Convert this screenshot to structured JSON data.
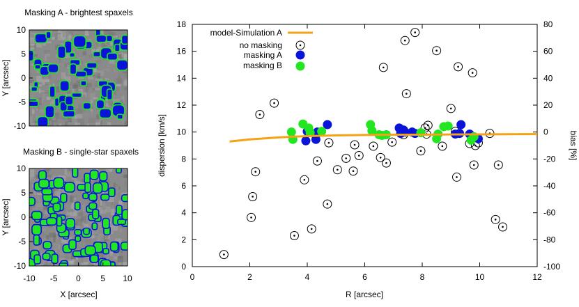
{
  "chart_data": [
    {
      "type": "image",
      "title": "Masking A - brightest spaxels",
      "xlabel": "",
      "ylabel": "Y [arcsec]",
      "xlim": [
        -10,
        10
      ],
      "ylim": [
        -10,
        10
      ],
      "yticks": [
        "10",
        "5",
        "0",
        "-5",
        "-10"
      ],
      "xticks": [],
      "colors": {
        "background": "#8c8c8c",
        "mask": "#0a14d8",
        "edge": "#22e622"
      }
    },
    {
      "type": "image",
      "title": "Masking B - single-star spaxels",
      "xlabel": "X [arcsec]",
      "ylabel": "Y [arcsec]",
      "xlim": [
        -10,
        10
      ],
      "ylim": [
        -10,
        10
      ],
      "yticks": [
        "10",
        "5",
        "0",
        "-5",
        "-10"
      ],
      "xticks": [
        "-10",
        "-5",
        "0",
        "5",
        "10"
      ],
      "colors": {
        "background": "#8c8c8c",
        "mask": "#22e622",
        "edge": "#0a14d8"
      }
    },
    {
      "type": "scatter",
      "xlabel": "R [arcsec]",
      "ylabel": "dispersion [km/s]",
      "y2label": "bias [%]",
      "xlim": [
        0,
        12
      ],
      "ylim": [
        0,
        18
      ],
      "y2lim": [
        -100,
        80
      ],
      "xticks": [
        "0",
        "2",
        "4",
        "6",
        "8",
        "10",
        "12"
      ],
      "yticks": [
        "0",
        "2",
        "4",
        "6",
        "8",
        "10",
        "12",
        "14",
        "16",
        "18"
      ],
      "y2ticks": [
        "-100",
        "-80",
        "-60",
        "-40",
        "-20",
        "0",
        "20",
        "40",
        "60",
        "80"
      ],
      "legend_position": "top-left",
      "series": [
        {
          "name": "model-Simulation A",
          "kind": "line",
          "color": "#f5a214",
          "x": [
            1.3,
            2.0,
            3.0,
            4.0,
            5.0,
            6.0,
            7.0,
            8.0,
            9.0,
            10.0,
            11.0,
            12.0
          ],
          "y": [
            9.3,
            9.45,
            9.6,
            9.7,
            9.75,
            9.78,
            9.8,
            9.8,
            9.82,
            9.83,
            9.84,
            9.85
          ]
        },
        {
          "name": "no masking",
          "kind": "circle-dot",
          "color": "#000000",
          "x": [
            1.1,
            2.05,
            2.1,
            2.2,
            2.35,
            2.85,
            3.55,
            3.9,
            4.15,
            4.35,
            4.7,
            4.75,
            5.05,
            5.35,
            5.6,
            5.65,
            5.8,
            6.3,
            6.55,
            6.65,
            6.75,
            6.95,
            7.35,
            7.4,
            7.45,
            7.75,
            7.95,
            8.1,
            8.15,
            8.2,
            8.5,
            8.7,
            9.0,
            9.15,
            9.2,
            9.25,
            9.65,
            9.75,
            9.8,
            9.85,
            9.95,
            10.35,
            10.55,
            10.65,
            10.8
          ],
          "y": [
            0.9,
            3.65,
            5.2,
            7.05,
            11.3,
            12.15,
            2.3,
            6.45,
            2.8,
            7.85,
            4.65,
            9.2,
            7.2,
            8.05,
            7.1,
            9.05,
            8.25,
            8.95,
            8.1,
            14.8,
            7.7,
            9.25,
            9.8,
            16.8,
            12.85,
            17.4,
            8.6,
            10.3,
            9.85,
            10.5,
            16.05,
            8.95,
            11.75,
            10.05,
            6.65,
            14.85,
            9.15,
            14.4,
            7.55,
            9.0,
            9.2,
            9.9,
            3.5,
            7.55,
            2.95
          ]
        },
        {
          "name": "masking A",
          "kind": "filled-circle",
          "color": "#0a14d8",
          "x": [
            3.95,
            4.0,
            4.3,
            4.35,
            4.7,
            7.2,
            7.25,
            7.35,
            7.4,
            7.65,
            7.75,
            9.15,
            9.3,
            9.35,
            9.65,
            9.95
          ],
          "y": [
            9.35,
            10.05,
            9.45,
            10.0,
            10.55,
            10.3,
            9.9,
            10.15,
            10.0,
            10.0,
            9.9,
            9.85,
            9.9,
            10.55,
            9.85,
            9.5
          ]
        },
        {
          "name": "masking B",
          "kind": "filled-circle",
          "color": "#22e622",
          "x": [
            3.45,
            3.5,
            3.85,
            4.05,
            4.1,
            4.5,
            6.2,
            6.25,
            6.5,
            6.6,
            6.75,
            7.95,
            8.5,
            8.55,
            8.75,
            8.9,
            9.7,
            9.8
          ],
          "y": [
            10.0,
            9.45,
            10.6,
            10.3,
            9.95,
            10.05,
            10.55,
            10.1,
            9.8,
            9.75,
            9.8,
            9.95,
            9.5,
            9.85,
            10.4,
            10.45,
            9.4,
            9.65
          ]
        }
      ]
    }
  ]
}
